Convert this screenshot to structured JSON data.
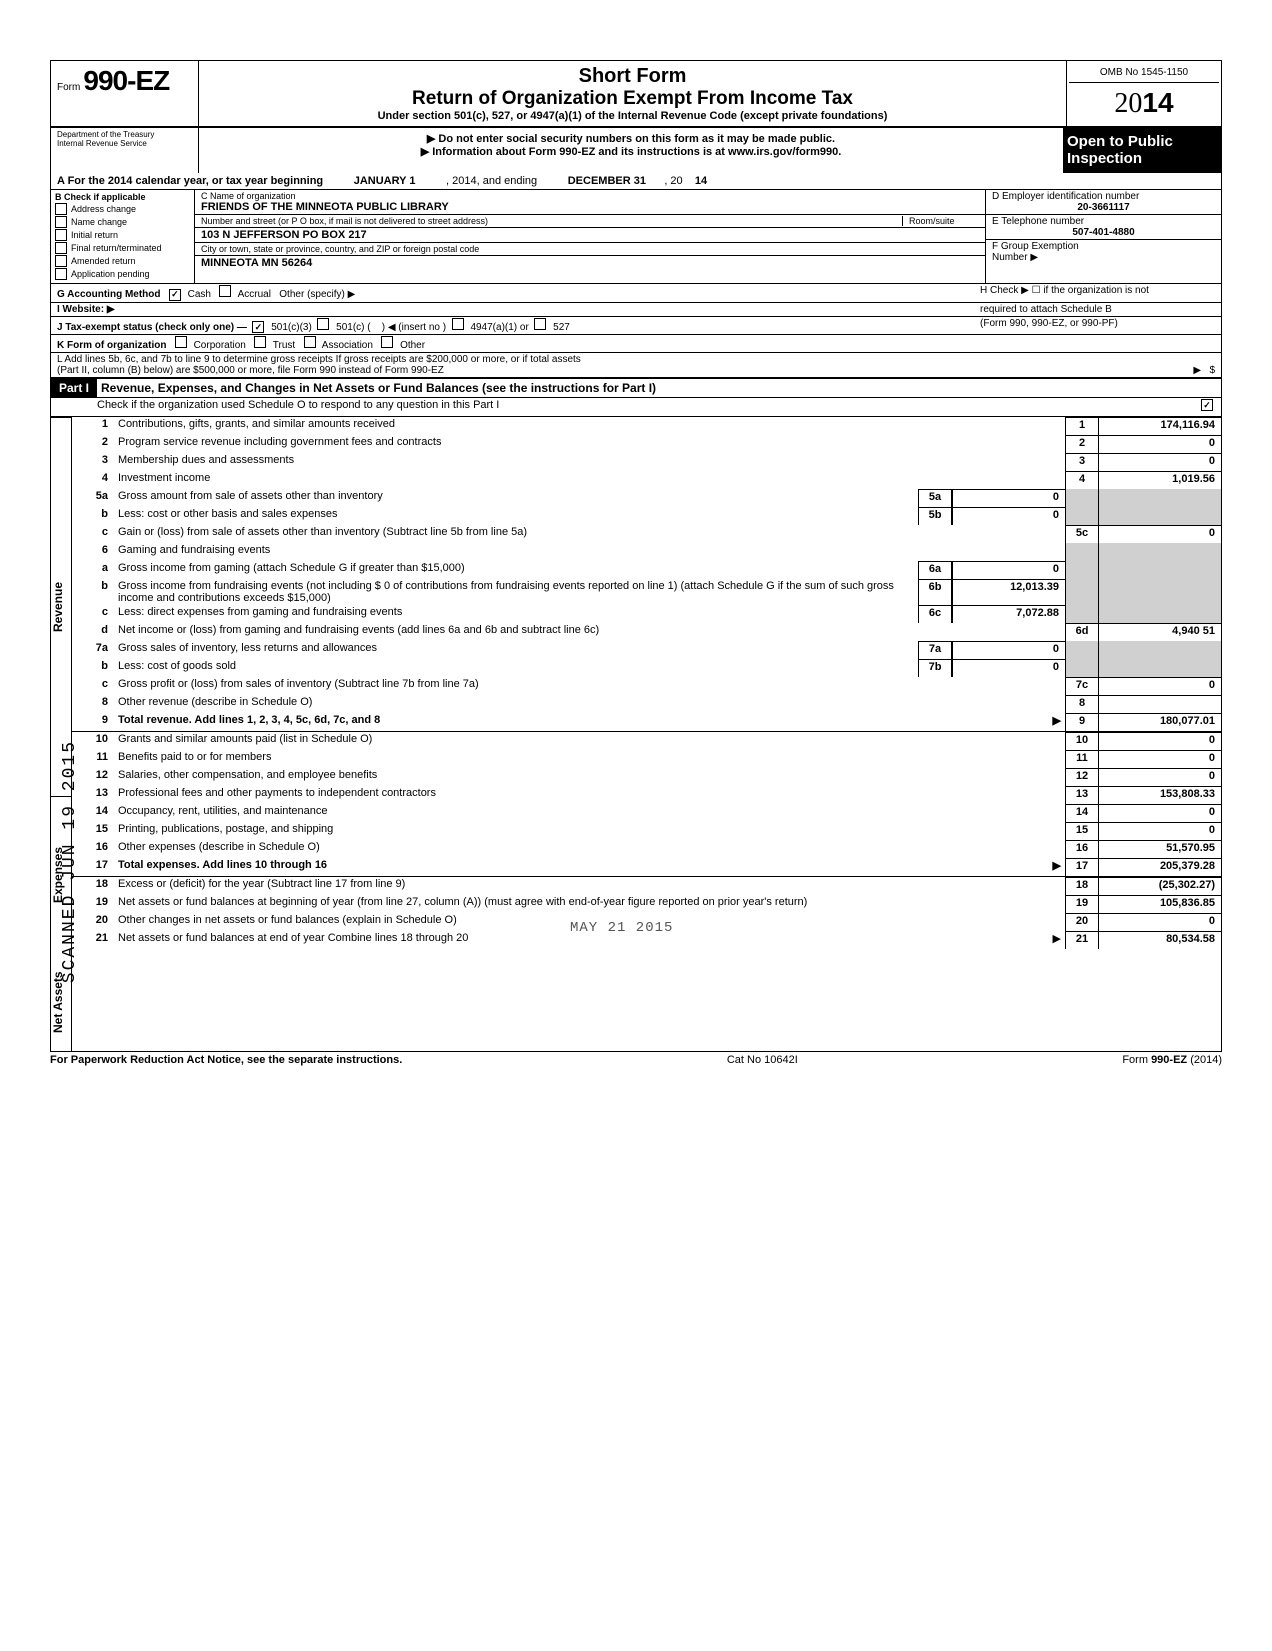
{
  "header": {
    "form_word": "Form",
    "form_number": "990-EZ",
    "short_form": "Short Form",
    "title": "Return of Organization Exempt From Income Tax",
    "subtitle": "Under section 501(c), 527, or 4947(a)(1) of the Internal Revenue Code (except private foundations)",
    "instruct1": "▶ Do not enter social security numbers on this form as it may be made public.",
    "instruct2": "▶ Information about Form 990-EZ and its instructions is at www.irs.gov/form990.",
    "omb": "OMB No 1545-1150",
    "year_outline": "20",
    "year_bold": "14",
    "open1": "Open to Public",
    "open2": "Inspection",
    "dept1": "Department of the Treasury",
    "dept2": "Internal Revenue Service"
  },
  "lineA": {
    "label_a": "A  For the 2014 calendar year, or tax year beginning",
    "begin": "JANUARY 1",
    "mid": ", 2014, and ending",
    "end": "DECEMBER 31",
    "year_suffix": ", 20",
    "year_val": "14"
  },
  "colB": {
    "header": "B  Check if applicable",
    "items": [
      "Address change",
      "Name change",
      "Initial return",
      "Final return/terminated",
      "Amended return",
      "Application pending"
    ]
  },
  "colC": {
    "name_label": "C  Name of organization",
    "name_value": "FRIENDS OF THE MINNEOTA PUBLIC LIBRARY",
    "addr_label": "Number and street (or P O  box, if mail is not delivered to street address)",
    "room_label": "Room/suite",
    "addr_value": "103 N JEFFERSON PO BOX 217",
    "city_label": "City or town, state or province, country, and ZIP or foreign postal code",
    "city_value": "MINNEOTA MN 56264"
  },
  "colDE": {
    "d_label": "D  Employer identification number",
    "d_value": "20-3661117",
    "e_label": "E  Telephone number",
    "e_value": "507-401-4880",
    "f_label": "F  Group Exemption",
    "f_label2": "Number ▶"
  },
  "rows_below": {
    "g_label": "G  Accounting Method",
    "g_cash": "Cash",
    "g_accrual": "Accrual",
    "g_other": "Other (specify) ▶",
    "h_label": "H  Check ▶ ☐ if the organization is not",
    "h_label2": "required to attach Schedule B",
    "h_label3": "(Form 990, 990-EZ, or 990-PF)",
    "i_label": "I  Website: ▶",
    "j_label": "J  Tax-exempt status (check only one) —",
    "j_501c3": "501(c)(3)",
    "j_501c": "501(c) (",
    "j_insert": ") ◀ (insert no )",
    "j_4947": "4947(a)(1) or",
    "j_527": "527",
    "k_label": "K  Form of organization",
    "k_corp": "Corporation",
    "k_trust": "Trust",
    "k_assoc": "Association",
    "k_other": "Other",
    "l_text1": "L  Add lines 5b, 6c, and 7b to line 9 to determine gross receipts  If gross receipts are $200,000 or more, or if total assets",
    "l_text2": "(Part II, column (B) below) are $500,000 or more, file Form 990 instead of Form 990-EZ",
    "l_arrow": "▶",
    "l_dollar": "$"
  },
  "part1": {
    "label": "Part I",
    "title": "Revenue, Expenses, and Changes in Net Assets or Fund Balances (see the instructions for Part I)",
    "check_line": "Check if the organization used Schedule O to respond to any question in this Part I",
    "checked": "✓"
  },
  "sections": {
    "revenue_label": "Revenue",
    "expenses_label": "Expenses",
    "netassets_label": "Net Assets"
  },
  "lines": [
    {
      "n": "1",
      "desc": "Contributions, gifts, grants, and similar amounts received",
      "box": "1",
      "val": "174,116.94"
    },
    {
      "n": "2",
      "desc": "Program service revenue including government fees and contracts",
      "box": "2",
      "val": "0"
    },
    {
      "n": "3",
      "desc": "Membership dues and assessments",
      "box": "3",
      "val": "0"
    },
    {
      "n": "4",
      "desc": "Investment income",
      "box": "4",
      "val": "1,019.56"
    },
    {
      "n": "5a",
      "desc": "Gross amount from sale of assets other than inventory",
      "inner_box": "5a",
      "inner_val": "0"
    },
    {
      "n": "b",
      "desc": "Less: cost or other basis and sales expenses",
      "inner_box": "5b",
      "inner_val": "0"
    },
    {
      "n": "c",
      "desc": "Gain or (loss) from sale of assets other than inventory (Subtract line 5b from line 5a)",
      "box": "5c",
      "val": "0"
    },
    {
      "n": "6",
      "desc": "Gaming and fundraising events"
    },
    {
      "n": "a",
      "desc": "Gross income from gaming (attach Schedule G if greater than $15,000)",
      "inner_box": "6a",
      "inner_val": "0"
    },
    {
      "n": "b",
      "desc": "Gross income from fundraising events (not including  $                     0 of contributions from fundraising events reported on line 1) (attach Schedule G if the sum of such gross income and contributions exceeds $15,000)",
      "inner_box": "6b",
      "inner_val": "12,013.39"
    },
    {
      "n": "c",
      "desc": "Less: direct expenses from gaming and fundraising events",
      "inner_box": "6c",
      "inner_val": "7,072.88"
    },
    {
      "n": "d",
      "desc": "Net income or (loss) from gaming and fundraising events (add lines 6a and 6b and subtract line 6c)",
      "box": "6d",
      "val": "4,940 51"
    },
    {
      "n": "7a",
      "desc": "Gross sales of inventory, less returns and allowances",
      "inner_box": "7a",
      "inner_val": "0"
    },
    {
      "n": "b",
      "desc": "Less: cost of goods sold",
      "inner_box": "7b",
      "inner_val": "0"
    },
    {
      "n": "c",
      "desc": "Gross profit or (loss) from sales of inventory (Subtract line 7b from line 7a)",
      "box": "7c",
      "val": "0"
    },
    {
      "n": "8",
      "desc": "Other revenue (describe in Schedule O)",
      "box": "8",
      "val": ""
    },
    {
      "n": "9",
      "desc": "Total revenue. Add lines 1, 2, 3, 4, 5c, 6d, 7c, and 8",
      "box": "9",
      "val": "180,077.01",
      "arrow": "▶",
      "bold": true
    },
    {
      "n": "10",
      "desc": "Grants and similar amounts paid (list in Schedule O)",
      "box": "10",
      "val": "0"
    },
    {
      "n": "11",
      "desc": "Benefits paid to or for members",
      "box": "11",
      "val": "0"
    },
    {
      "n": "12",
      "desc": "Salaries, other compensation, and employee benefits",
      "box": "12",
      "val": "0"
    },
    {
      "n": "13",
      "desc": "Professional fees and other payments to independent contractors",
      "box": "13",
      "val": "153,808.33"
    },
    {
      "n": "14",
      "desc": "Occupancy, rent, utilities, and maintenance",
      "box": "14",
      "val": "0"
    },
    {
      "n": "15",
      "desc": "Printing, publications, postage, and shipping",
      "box": "15",
      "val": "0"
    },
    {
      "n": "16",
      "desc": "Other expenses (describe in Schedule O)",
      "box": "16",
      "val": "51,570.95"
    },
    {
      "n": "17",
      "desc": "Total expenses. Add lines 10 through 16",
      "box": "17",
      "val": "205,379.28",
      "arrow": "▶",
      "bold": true
    },
    {
      "n": "18",
      "desc": "Excess or (deficit) for the year (Subtract line 17 from line 9)",
      "box": "18",
      "val": "(25,302.27)"
    },
    {
      "n": "19",
      "desc": "Net assets or fund balances at beginning of year (from line 27, column (A)) (must agree with end-of-year figure reported on prior year's return)",
      "box": "19",
      "val": "105,836.85"
    },
    {
      "n": "20",
      "desc": "Other changes in net assets or fund balances (explain in Schedule O)",
      "box": "20",
      "val": "0"
    },
    {
      "n": "21",
      "desc": "Net assets or fund balances at end of year  Combine lines 18 through 20",
      "box": "21",
      "val": "80,534.58",
      "arrow": "▶"
    }
  ],
  "footer": {
    "left": "For Paperwork Reduction Act Notice, see the separate instructions.",
    "mid": "Cat  No  10642I",
    "right": "Form 990-EZ (2014)"
  },
  "stamps": {
    "scanned": "SCANNED JUN 19 2015",
    "received": "MAY 21 2015"
  }
}
